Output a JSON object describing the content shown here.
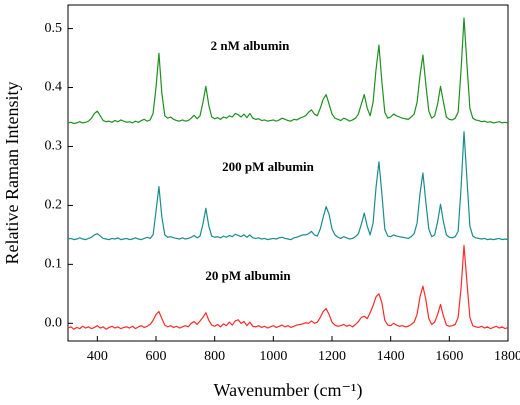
{
  "chart_data": {
    "type": "line",
    "xlabel": "Wavenumber (cm⁻¹)",
    "ylabel": "Relative Raman Intensity",
    "annotations": [
      "2 nM albumin",
      "200 pM albumin",
      "20 pM albumin"
    ],
    "xlim": [
      300,
      1800
    ],
    "xticks": [
      400,
      600,
      800,
      1000,
      1200,
      1400,
      1600,
      1800
    ],
    "ylim": [
      -0.03,
      0.54
    ],
    "yticks": [
      {
        "value": 0,
        "label": "0.0"
      },
      0.1,
      0.2,
      0.3,
      0.4,
      0.5
    ],
    "x": [
      300,
      310,
      320,
      330,
      340,
      350,
      360,
      370,
      380,
      390,
      400,
      410,
      420,
      430,
      440,
      450,
      460,
      470,
      480,
      490,
      500,
      510,
      520,
      530,
      540,
      550,
      560,
      570,
      580,
      590,
      600,
      610,
      620,
      630,
      640,
      650,
      660,
      670,
      680,
      690,
      700,
      710,
      720,
      730,
      740,
      750,
      760,
      770,
      780,
      790,
      800,
      810,
      820,
      830,
      840,
      850,
      860,
      870,
      880,
      890,
      900,
      910,
      920,
      930,
      940,
      950,
      960,
      970,
      980,
      990,
      1000,
      1010,
      1020,
      1030,
      1040,
      1050,
      1060,
      1070,
      1080,
      1090,
      1100,
      1110,
      1120,
      1130,
      1140,
      1150,
      1160,
      1170,
      1180,
      1190,
      1200,
      1210,
      1220,
      1230,
      1240,
      1250,
      1260,
      1270,
      1280,
      1290,
      1300,
      1310,
      1320,
      1330,
      1340,
      1350,
      1360,
      1370,
      1380,
      1390,
      1400,
      1410,
      1420,
      1430,
      1440,
      1450,
      1460,
      1470,
      1480,
      1490,
      1500,
      1510,
      1520,
      1530,
      1540,
      1550,
      1560,
      1570,
      1580,
      1590,
      1600,
      1610,
      1620,
      1630,
      1640,
      1650,
      1660,
      1670,
      1680,
      1690,
      1700,
      1710,
      1720,
      1730,
      1740,
      1750,
      1760,
      1770,
      1780,
      1790,
      1800
    ],
    "series": [
      {
        "name": "2 nM albumin",
        "color": "#1f8f1f",
        "values": [
          0.34,
          0.341,
          0.339,
          0.34,
          0.342,
          0.34,
          0.341,
          0.343,
          0.348,
          0.356,
          0.36,
          0.352,
          0.344,
          0.342,
          0.343,
          0.341,
          0.344,
          0.342,
          0.345,
          0.343,
          0.341,
          0.342,
          0.34,
          0.343,
          0.341,
          0.344,
          0.346,
          0.343,
          0.345,
          0.356,
          0.4,
          0.458,
          0.39,
          0.352,
          0.348,
          0.35,
          0.346,
          0.344,
          0.343,
          0.345,
          0.343,
          0.344,
          0.348,
          0.353,
          0.347,
          0.352,
          0.375,
          0.402,
          0.37,
          0.35,
          0.347,
          0.349,
          0.346,
          0.35,
          0.348,
          0.352,
          0.35,
          0.356,
          0.354,
          0.35,
          0.355,
          0.349,
          0.356,
          0.348,
          0.346,
          0.347,
          0.344,
          0.345,
          0.343,
          0.344,
          0.345,
          0.343,
          0.345,
          0.348,
          0.346,
          0.344,
          0.343,
          0.346,
          0.345,
          0.348,
          0.35,
          0.352,
          0.358,
          0.362,
          0.355,
          0.352,
          0.365,
          0.38,
          0.388,
          0.372,
          0.355,
          0.348,
          0.346,
          0.344,
          0.348,
          0.346,
          0.343,
          0.345,
          0.348,
          0.355,
          0.372,
          0.388,
          0.365,
          0.352,
          0.375,
          0.43,
          0.472,
          0.41,
          0.358,
          0.348,
          0.35,
          0.355,
          0.352,
          0.35,
          0.348,
          0.347,
          0.346,
          0.35,
          0.355,
          0.375,
          0.42,
          0.455,
          0.405,
          0.36,
          0.348,
          0.352,
          0.372,
          0.402,
          0.375,
          0.35,
          0.346,
          0.345,
          0.348,
          0.358,
          0.43,
          0.518,
          0.44,
          0.365,
          0.348,
          0.345,
          0.344,
          0.342,
          0.343,
          0.341,
          0.342,
          0.34,
          0.341,
          0.342,
          0.34,
          0.341,
          0.34
        ]
      },
      {
        "name": "200 pM albumin",
        "color": "#1a8c8c",
        "values": [
          0.143,
          0.144,
          0.142,
          0.143,
          0.145,
          0.143,
          0.142,
          0.144,
          0.146,
          0.15,
          0.152,
          0.148,
          0.144,
          0.143,
          0.142,
          0.144,
          0.143,
          0.145,
          0.142,
          0.143,
          0.144,
          0.142,
          0.143,
          0.145,
          0.143,
          0.142,
          0.144,
          0.146,
          0.144,
          0.15,
          0.19,
          0.232,
          0.18,
          0.15,
          0.146,
          0.147,
          0.145,
          0.144,
          0.143,
          0.145,
          0.143,
          0.144,
          0.146,
          0.149,
          0.145,
          0.148,
          0.168,
          0.195,
          0.165,
          0.148,
          0.146,
          0.147,
          0.145,
          0.148,
          0.146,
          0.149,
          0.147,
          0.151,
          0.149,
          0.147,
          0.15,
          0.146,
          0.15,
          0.145,
          0.144,
          0.145,
          0.143,
          0.144,
          0.142,
          0.143,
          0.144,
          0.143,
          0.145,
          0.146,
          0.144,
          0.143,
          0.142,
          0.145,
          0.146,
          0.148,
          0.15,
          0.15,
          0.152,
          0.156,
          0.15,
          0.148,
          0.16,
          0.18,
          0.198,
          0.185,
          0.16,
          0.15,
          0.146,
          0.144,
          0.147,
          0.145,
          0.143,
          0.144,
          0.147,
          0.152,
          0.168,
          0.187,
          0.165,
          0.15,
          0.17,
          0.23,
          0.274,
          0.22,
          0.16,
          0.148,
          0.147,
          0.15,
          0.148,
          0.147,
          0.146,
          0.145,
          0.144,
          0.147,
          0.152,
          0.17,
          0.22,
          0.255,
          0.205,
          0.16,
          0.147,
          0.15,
          0.172,
          0.202,
          0.172,
          0.15,
          0.146,
          0.145,
          0.147,
          0.156,
          0.23,
          0.325,
          0.245,
          0.165,
          0.148,
          0.145,
          0.144,
          0.143,
          0.144,
          0.142,
          0.143,
          0.142,
          0.143,
          0.144,
          0.142,
          0.143,
          0.142
        ]
      },
      {
        "name": "20 pM albumin",
        "color": "#ff2a2a",
        "values": [
          -0.008,
          -0.006,
          -0.01,
          -0.007,
          -0.009,
          -0.005,
          -0.008,
          -0.006,
          -0.009,
          -0.007,
          -0.004,
          -0.008,
          -0.006,
          -0.01,
          -0.007,
          -0.005,
          -0.008,
          -0.006,
          -0.009,
          -0.007,
          -0.006,
          -0.008,
          -0.005,
          -0.009,
          -0.006,
          -0.004,
          -0.007,
          -0.005,
          -0.002,
          0.005,
          0.015,
          0.02,
          0.008,
          -0.003,
          -0.006,
          -0.004,
          -0.007,
          -0.005,
          -0.008,
          -0.006,
          -0.004,
          -0.006,
          0.0,
          0.003,
          -0.002,
          0.004,
          0.01,
          0.018,
          0.005,
          -0.003,
          -0.005,
          -0.002,
          -0.006,
          -0.001,
          -0.004,
          0.002,
          -0.003,
          0.004,
          0.006,
          0.0,
          0.003,
          -0.004,
          0.002,
          -0.005,
          -0.006,
          -0.004,
          -0.007,
          -0.005,
          -0.008,
          -0.006,
          -0.004,
          -0.007,
          -0.005,
          -0.003,
          -0.006,
          -0.004,
          -0.007,
          -0.005,
          -0.003,
          -0.002,
          -0.001,
          0.001,
          0.0,
          0.004,
          0.0,
          0.002,
          0.01,
          0.02,
          0.025,
          0.015,
          0.002,
          -0.003,
          -0.005,
          -0.004,
          -0.002,
          -0.005,
          -0.003,
          -0.006,
          -0.002,
          0.003,
          0.01,
          0.012,
          0.008,
          0.018,
          0.03,
          0.045,
          0.05,
          0.035,
          0.005,
          -0.003,
          -0.004,
          0.0,
          -0.003,
          -0.005,
          -0.004,
          -0.006,
          -0.005,
          -0.002,
          0.002,
          0.015,
          0.045,
          0.063,
          0.04,
          0.008,
          -0.002,
          0.002,
          0.015,
          0.032,
          0.012,
          -0.003,
          -0.005,
          -0.004,
          -0.002,
          0.01,
          0.06,
          0.132,
          0.07,
          0.01,
          -0.004,
          -0.006,
          -0.007,
          -0.005,
          -0.008,
          -0.006,
          -0.009,
          -0.007,
          -0.005,
          -0.008,
          -0.006,
          -0.009,
          -0.007
        ]
      }
    ]
  }
}
